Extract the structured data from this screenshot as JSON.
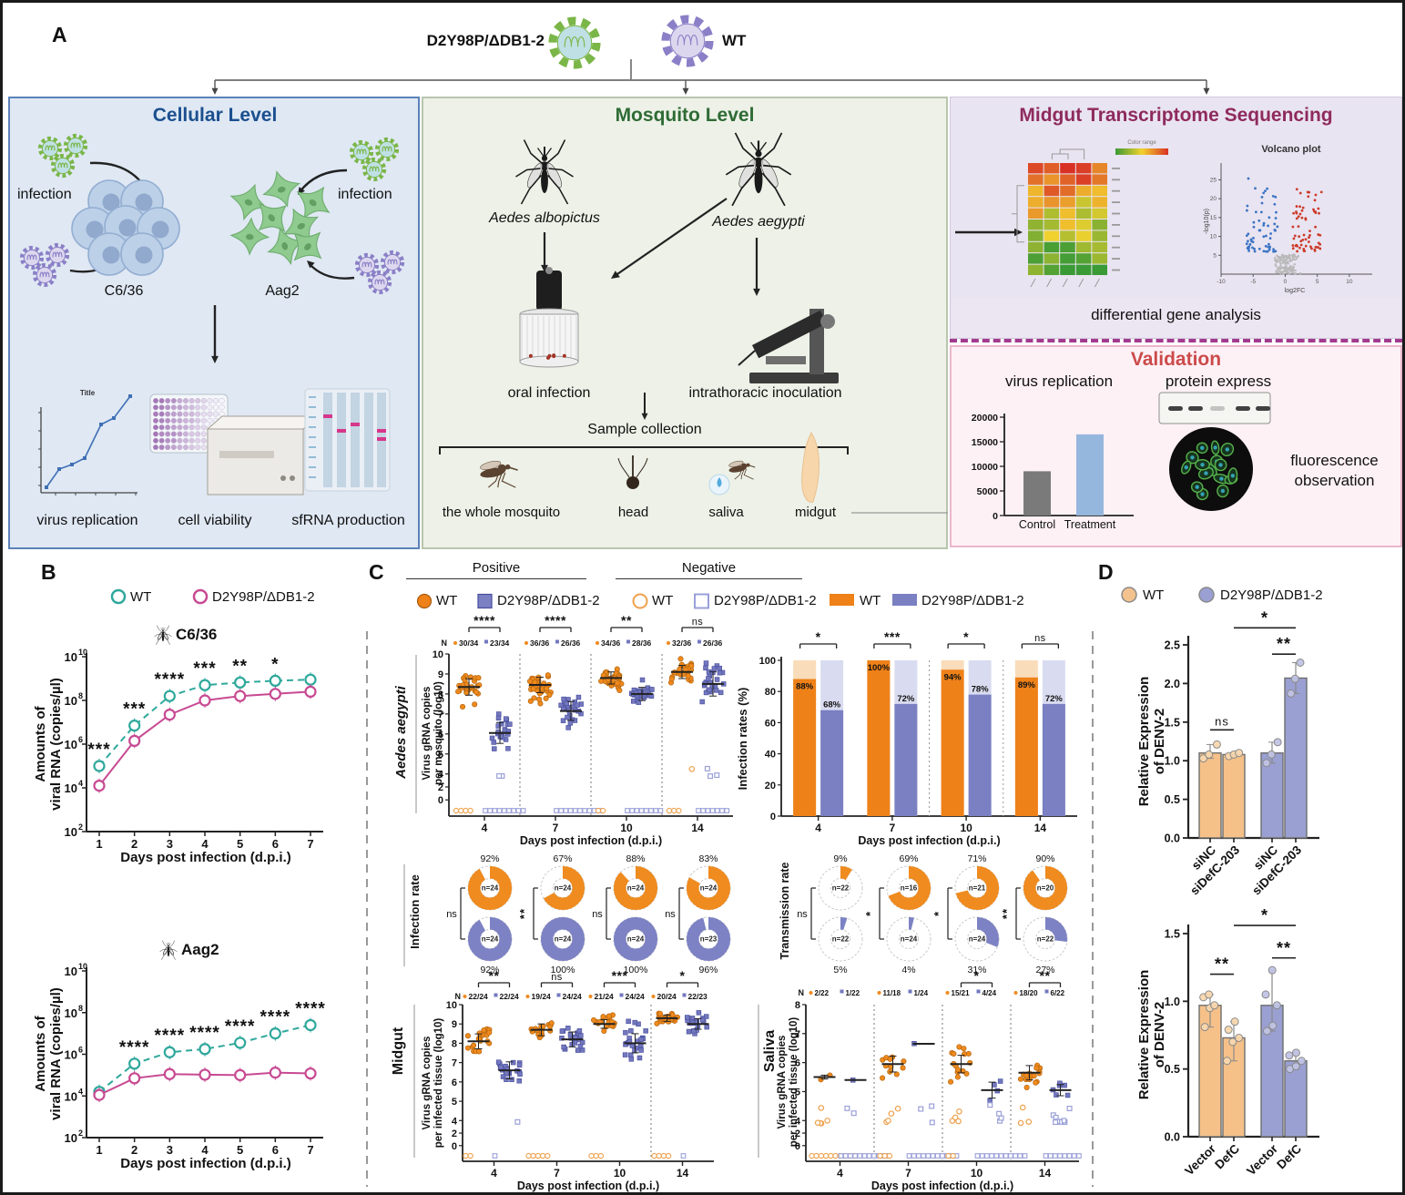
{
  "panel_labels": {
    "a": "A",
    "b": "B",
    "c": "C",
    "d": "D"
  },
  "header": {
    "mutant": "D2Y98P/ΔDB1-2",
    "wt": "WT"
  },
  "colors": {
    "teal": "#2fa89c",
    "pink": "#c74a92",
    "orange": "#ee8118",
    "purple": "#7b80c2",
    "orange_open": "#efa14d",
    "purple_open": "#9aa0d8",
    "bar_bg_orange": "#f9dcba",
    "bar_bg_purple": "#d9dbf0",
    "cellular_title": "#1b4f8f",
    "mosquito_title": "#2e6b35",
    "transcriptome_title": "#8e2a5e",
    "validation_title": "#cc4a4a"
  },
  "cellular": {
    "title": "Cellular Level",
    "infection_left": "infection",
    "infection_right": "infection",
    "cell_line_left": "C6/36",
    "cell_line_right": "Aag2",
    "caption_replication": "virus replication",
    "caption_viability": "cell viability",
    "caption_sfrna": "sfRNA production",
    "mini_chart_title": "Title"
  },
  "mosquito": {
    "title": "Mosquito Level",
    "species_left": "Aedes albopictus",
    "species_right": "Aedes aegypti",
    "method_left": "oral infection",
    "method_right": "intrathoracic inoculation",
    "collection": "Sample collection",
    "sample_whole": "the whole mosquito",
    "sample_head": "head",
    "sample_saliva": "saliva",
    "sample_midgut": "midgut"
  },
  "transcriptome": {
    "title": "Midgut Transcriptome Sequencing",
    "volcano_title": "Volcano plot",
    "colorbar_label": "Color range",
    "volcano_xlabel": "log2FC",
    "volcano_ylabel": "-log10(p)",
    "caption": "differential gene analysis"
  },
  "validation": {
    "title": "Validation",
    "item_replication": "virus replication",
    "item_protein": "protein express",
    "item_fluorescence": "fluorescence observation"
  },
  "panelB": {
    "legend_wt": "WT",
    "legend_mut": "D2Y98P/ΔDB1-2",
    "title_c636": "C6/36",
    "title_aag2": "Aag2",
    "ylabel_line1": "Amounts of",
    "ylabel_line2": "viral RNA (copies/µl)",
    "xlabel": "Days post infection (d.p.i.)"
  },
  "panelC": {
    "positive": "Positive",
    "negative": "Negative",
    "wt": "WT",
    "mut": "D2Y98P/ΔDB1-2",
    "row_aegypti": "Aedes aegypti",
    "row_midgut": "Midgut",
    "row_saliva": "Saliva",
    "row_infection_rate": "Infection rate",
    "row_transmission_rate": "Transmission rate",
    "ylab_mosquito_1": "Virus gRNA copies",
    "ylab_mosquito_2": "per mosquito (log10)",
    "ylab_tissue_1": "Virus gRNA copies",
    "ylab_tissue_2": "per infected tissue (log10)",
    "ylab_rates": "Infection rates (%)"
  },
  "panelD": {
    "legend_wt": "WT",
    "legend_mut": "D2Y98P/ΔDB1-2",
    "ylabel_line1": "Relative Expression",
    "ylabel_line2": "of DENV-2"
  },
  "chart_data": {
    "c636": {
      "type": "line",
      "title": "C6/36",
      "x": [
        1,
        2,
        3,
        4,
        5,
        6,
        7
      ],
      "xlabel": "Days post infection (d.p.i.)",
      "ylabel": "Amounts of viral RNA (copies/µl)",
      "ylog_range": [
        2,
        10
      ],
      "series": [
        {
          "name": "WT",
          "log10": [
            5.0,
            6.85,
            8.2,
            8.7,
            8.82,
            8.9,
            8.95
          ]
        },
        {
          "name": "D2Y98P/ΔDB1-2",
          "log10": [
            4.1,
            6.15,
            7.35,
            8.0,
            8.2,
            8.3,
            8.4
          ]
        }
      ],
      "sig": [
        "***",
        "***",
        "****",
        "***",
        "**",
        "*",
        ""
      ]
    },
    "aag2": {
      "type": "line",
      "title": "Aag2",
      "x": [
        1,
        2,
        3,
        4,
        5,
        6,
        7
      ],
      "xlabel": "Days post infection (d.p.i.)",
      "ylabel": "Amounts of viral RNA (copies/µl)",
      "ylog_range": [
        2,
        10
      ],
      "series": [
        {
          "name": "WT",
          "log10": [
            4.2,
            5.55,
            6.1,
            6.25,
            6.55,
            7.0,
            7.4
          ]
        },
        {
          "name": "D2Y98P/ΔDB1-2",
          "log10": [
            4.05,
            4.85,
            5.05,
            5.02,
            5.0,
            5.12,
            5.08
          ]
        }
      ],
      "sig": [
        "",
        "****",
        "****",
        "****",
        "****",
        "****",
        "****"
      ]
    },
    "whole_mosquito_scatter": {
      "type": "scatter",
      "group": "Aedes aegypti",
      "x": [
        4,
        7,
        10,
        14
      ],
      "xlabel": "Days post infection (d.p.i.)",
      "ylabel": "Virus gRNA copies per mosquito (log10)",
      "ymax": 10,
      "n_wt": [
        "30/34",
        "36/36",
        "34/36",
        "32/36"
      ],
      "n_mut": [
        "23/34",
        "26/36",
        "28/36",
        "26/36"
      ],
      "wt_median": [
        8.35,
        8.45,
        8.8,
        9.1
      ],
      "wt_spread": [
        0.75,
        0.7,
        0.55,
        0.6
      ],
      "mut_median": [
        6.05,
        7.15,
        8.0,
        8.5
      ],
      "mut_spread": [
        0.95,
        0.85,
        0.6,
        1.1
      ],
      "open_wt": [
        0,
        0,
        0,
        1
      ],
      "open_mut": [
        2,
        0,
        0,
        3
      ],
      "sig": [
        "****",
        "****",
        "**",
        "ns"
      ]
    },
    "infection_rates": {
      "type": "bar",
      "x": [
        4,
        7,
        10,
        14
      ],
      "xlabel": "Days post infection (d.p.i.)",
      "ylabel": "Infection rates (%)",
      "yticks": [
        0,
        20,
        40,
        60,
        80,
        100
      ],
      "wt": [
        88,
        100,
        94,
        89
      ],
      "mut": [
        68,
        72,
        78,
        72
      ],
      "wt_labels": [
        "88%",
        "100%",
        "94%",
        "89%"
      ],
      "mut_labels": [
        "68%",
        "72%",
        "78%",
        "72%"
      ],
      "sig": [
        "*",
        "***",
        "*",
        "ns"
      ]
    },
    "midgut_infection_donuts": {
      "type": "pie",
      "row_label": "Infection rate",
      "wt_pct": [
        92,
        67,
        88,
        83
      ],
      "wt_n": [
        "n=24",
        "n=24",
        "n=24",
        "n=24"
      ],
      "wt_labels": [
        "92%",
        "67%",
        "88%",
        "83%"
      ],
      "mut_pct": [
        92,
        100,
        100,
        96
      ],
      "mut_n": [
        "n=24",
        "n=24",
        "n=24",
        "n=23"
      ],
      "mut_labels": [
        "92%",
        "100%",
        "100%",
        "96%"
      ],
      "sig": [
        "ns",
        "**",
        "ns",
        "ns"
      ]
    },
    "transmission_donuts": {
      "type": "pie",
      "row_label": "Transmission rate",
      "wt_pct": [
        9,
        69,
        71,
        90
      ],
      "wt_n": [
        "n=22",
        "n=16",
        "n=21",
        "n=20"
      ],
      "wt_labels": [
        "9%",
        "69%",
        "71%",
        "90%"
      ],
      "mut_pct": [
        5,
        4,
        31,
        27
      ],
      "mut_n": [
        "n=22",
        "n=24",
        "n=24",
        "n=22"
      ],
      "mut_labels": [
        "5%",
        "4%",
        "31%",
        "27%"
      ],
      "sig": [
        "ns",
        "*",
        "*",
        "**"
      ]
    },
    "midgut_scatter": {
      "type": "scatter",
      "group": "Midgut",
      "x": [
        4,
        7,
        10,
        14
      ],
      "xlabel": "Days post infection (d.p.i.)",
      "ylabel": "Virus gRNA copies per infected tissue (log10)",
      "ymax": 10,
      "n_wt": [
        "22/24",
        "19/24",
        "21/24",
        "20/24"
      ],
      "n_mut": [
        "22/24",
        "24/24",
        "24/24",
        "22/23"
      ],
      "wt_median": [
        8.1,
        8.7,
        9.0,
        9.3
      ],
      "wt_spread": [
        0.7,
        0.55,
        0.4,
        0.3
      ],
      "mut_median": [
        6.6,
        8.2,
        8.0,
        9.0
      ],
      "mut_spread": [
        0.8,
        0.7,
        0.9,
        0.5
      ],
      "open_wt": [
        0,
        0,
        0,
        0
      ],
      "open_mut": [
        1,
        0,
        0,
        0
      ],
      "sig": [
        "**",
        "ns",
        "***",
        "*"
      ]
    },
    "saliva_scatter": {
      "type": "scatter",
      "group": "Saliva",
      "x": [
        4,
        7,
        10,
        14
      ],
      "xlabel": "Days post infection (d.p.i.)",
      "ylabel": "Virus gRNA copies per infected tissue (log10)",
      "ymax": 8,
      "n_wt": [
        "2/22",
        "11/18",
        "15/21",
        "18/20"
      ],
      "n_mut": [
        "1/22",
        "1/24",
        "4/24",
        "6/22"
      ],
      "wt_median": [
        5.5,
        5.95,
        5.95,
        5.65
      ],
      "wt_spread": [
        0.12,
        0.5,
        0.55,
        0.45
      ],
      "mut_median": [
        5.4,
        6.65,
        5.05,
        5.05
      ],
      "mut_spread": [
        0.01,
        0.01,
        0.5,
        0.35
      ],
      "open_wt": [
        5,
        4,
        4,
        3
      ],
      "open_mut": [
        2,
        3,
        4,
        8
      ],
      "sig": [
        "",
        "",
        "*",
        "**"
      ]
    },
    "sirna_bars": {
      "type": "bar",
      "ylabel": "Relative Expression of DENV-2",
      "categories": [
        "siNC",
        "siDefC-203",
        "siNC",
        "siDefC-203"
      ],
      "values": [
        1.1,
        1.08,
        1.1,
        2.07
      ],
      "group": [
        "wt",
        "wt",
        "mut",
        "mut"
      ],
      "yticks": [
        0,
        0.5,
        1.0,
        1.5,
        2.0,
        2.5
      ],
      "dots": [
        [
          1.03,
          1.08,
          1.21
        ],
        [
          1.06,
          1.08,
          1.1
        ],
        [
          0.97,
          1.08,
          1.24
        ],
        [
          1.87,
          2.06,
          2.27
        ]
      ],
      "sig": [
        {
          "label": "ns",
          "a": 0,
          "b": 1,
          "v": 1.4
        },
        {
          "label": "**",
          "a": 2,
          "b": 3,
          "v": 2.38
        },
        {
          "label": "*",
          "a": 1,
          "b": 3,
          "v": 2.72
        }
      ]
    },
    "defc_bars": {
      "type": "bar",
      "ylabel": "Relative Expression of DENV-2",
      "categories": [
        "Vector",
        "DefC",
        "Vector",
        "DefC"
      ],
      "values": [
        0.97,
        0.73,
        0.97,
        0.56
      ],
      "group": [
        "wt",
        "wt",
        "mut",
        "mut"
      ],
      "yticks": [
        0,
        0.5,
        1.0,
        1.5
      ],
      "dots": [
        [
          0.81,
          0.95,
          0.97,
          1.03,
          1.05
        ],
        [
          0.56,
          0.7,
          0.73,
          0.79,
          0.85
        ],
        [
          0.78,
          0.82,
          0.97,
          1.05,
          1.23
        ],
        [
          0.5,
          0.52,
          0.56,
          0.6,
          0.62
        ]
      ],
      "sig": [
        {
          "label": "**",
          "a": 0,
          "b": 1,
          "v": 1.2
        },
        {
          "label": "**",
          "a": 2,
          "b": 3,
          "v": 1.32
        },
        {
          "label": "*",
          "a": 1,
          "b": 3,
          "v": 1.56
        }
      ]
    },
    "validation_bars": {
      "type": "bar",
      "title": "virus replication",
      "categories": [
        "Control",
        "Treatment"
      ],
      "values": [
        9000,
        16500
      ],
      "yticks": [
        0,
        5000,
        10000,
        15000,
        20000
      ]
    }
  }
}
